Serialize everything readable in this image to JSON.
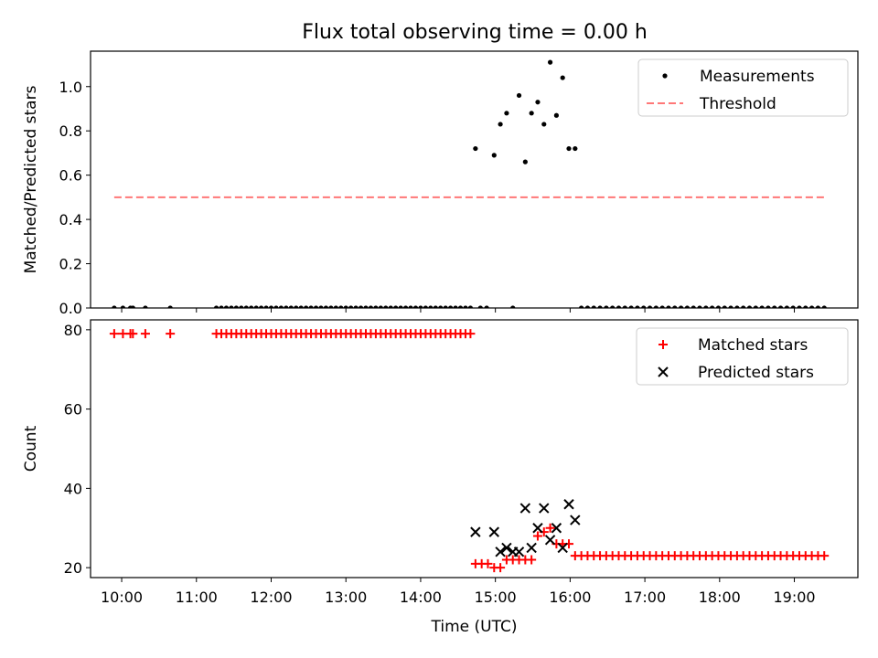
{
  "title": "Flux total observing time = 0.00 h",
  "chart_data": [
    {
      "type": "scatter",
      "ylabel": "Matched/Predicted stars",
      "ylim": [
        0,
        1.16
      ],
      "yticks": [
        0.0,
        0.2,
        0.4,
        0.6,
        0.8,
        1.0
      ],
      "ytick_labels": [
        "0.0",
        "0.2",
        "0.4",
        "0.6",
        "0.8",
        "1.0"
      ],
      "xlim": [
        "09:35",
        "19:51"
      ],
      "legend_position": "top-right",
      "series": [
        {
          "name": "Measurements",
          "marker": "dot",
          "color": "#000000",
          "points": [
            [
              "09:54",
              0
            ],
            [
              "10:01",
              0
            ],
            [
              "10:07",
              0
            ],
            [
              "10:09",
              0
            ],
            [
              "10:19",
              0
            ],
            [
              "10:39",
              0
            ],
            [
              "11:16",
              0
            ],
            [
              "11:20",
              0
            ],
            [
              "11:24",
              0
            ],
            [
              "11:28",
              0
            ],
            [
              "11:32",
              0
            ],
            [
              "11:36",
              0
            ],
            [
              "11:40",
              0
            ],
            [
              "11:44",
              0
            ],
            [
              "11:48",
              0
            ],
            [
              "11:52",
              0
            ],
            [
              "11:56",
              0
            ],
            [
              "12:00",
              0
            ],
            [
              "12:04",
              0
            ],
            [
              "12:08",
              0
            ],
            [
              "12:12",
              0
            ],
            [
              "12:16",
              0
            ],
            [
              "12:20",
              0
            ],
            [
              "12:24",
              0
            ],
            [
              "12:28",
              0
            ],
            [
              "12:32",
              0
            ],
            [
              "12:36",
              0
            ],
            [
              "12:40",
              0
            ],
            [
              "12:44",
              0
            ],
            [
              "12:48",
              0
            ],
            [
              "12:52",
              0
            ],
            [
              "12:56",
              0
            ],
            [
              "13:00",
              0
            ],
            [
              "13:04",
              0
            ],
            [
              "13:08",
              0
            ],
            [
              "13:12",
              0
            ],
            [
              "13:16",
              0
            ],
            [
              "13:20",
              0
            ],
            [
              "13:24",
              0
            ],
            [
              "13:28",
              0
            ],
            [
              "13:32",
              0
            ],
            [
              "13:36",
              0
            ],
            [
              "13:40",
              0
            ],
            [
              "13:44",
              0
            ],
            [
              "13:48",
              0
            ],
            [
              "13:52",
              0
            ],
            [
              "13:56",
              0
            ],
            [
              "14:00",
              0
            ],
            [
              "14:04",
              0
            ],
            [
              "14:08",
              0
            ],
            [
              "14:12",
              0
            ],
            [
              "14:16",
              0
            ],
            [
              "14:20",
              0
            ],
            [
              "14:24",
              0
            ],
            [
              "14:28",
              0
            ],
            [
              "14:32",
              0
            ],
            [
              "14:36",
              0
            ],
            [
              "14:40",
              0
            ],
            [
              "14:48",
              0
            ],
            [
              "14:53",
              0
            ],
            [
              "15:14",
              0
            ],
            [
              "14:44",
              0.72
            ],
            [
              "14:59",
              0.69
            ],
            [
              "15:04",
              0.83
            ],
            [
              "15:09",
              0.88
            ],
            [
              "15:19",
              0.96
            ],
            [
              "15:24",
              0.66
            ],
            [
              "15:29",
              0.88
            ],
            [
              "15:34",
              0.93
            ],
            [
              "15:39",
              0.83
            ],
            [
              "15:44",
              1.11
            ],
            [
              "15:49",
              0.87
            ],
            [
              "15:54",
              1.04
            ],
            [
              "15:59",
              0.72
            ],
            [
              "16:04",
              0.72
            ],
            [
              "16:09",
              0
            ],
            [
              "16:14",
              0
            ],
            [
              "16:19",
              0
            ],
            [
              "16:24",
              0
            ],
            [
              "16:29",
              0
            ],
            [
              "16:34",
              0
            ],
            [
              "16:39",
              0
            ],
            [
              "16:44",
              0
            ],
            [
              "16:49",
              0
            ],
            [
              "16:54",
              0
            ],
            [
              "16:59",
              0
            ],
            [
              "17:04",
              0
            ],
            [
              "17:09",
              0
            ],
            [
              "17:14",
              0
            ],
            [
              "17:19",
              0
            ],
            [
              "17:24",
              0
            ],
            [
              "17:29",
              0
            ],
            [
              "17:34",
              0
            ],
            [
              "17:39",
              0
            ],
            [
              "17:44",
              0
            ],
            [
              "17:49",
              0
            ],
            [
              "17:54",
              0
            ],
            [
              "17:59",
              0
            ],
            [
              "18:04",
              0
            ],
            [
              "18:09",
              0
            ],
            [
              "18:14",
              0
            ],
            [
              "18:19",
              0
            ],
            [
              "18:24",
              0
            ],
            [
              "18:29",
              0
            ],
            [
              "18:34",
              0
            ],
            [
              "18:39",
              0
            ],
            [
              "18:44",
              0
            ],
            [
              "18:49",
              0
            ],
            [
              "18:54",
              0
            ],
            [
              "18:59",
              0
            ],
            [
              "19:04",
              0
            ],
            [
              "19:09",
              0
            ],
            [
              "19:14",
              0
            ],
            [
              "19:19",
              0
            ],
            [
              "19:24",
              0
            ]
          ]
        },
        {
          "name": "Threshold",
          "marker": "dashed-line",
          "color": "#ff7777",
          "points": [
            [
              "09:54",
              0.5
            ],
            [
              "19:24",
              0.5
            ]
          ]
        }
      ]
    },
    {
      "type": "scatter",
      "ylabel": "Count",
      "xlabel": "Time (UTC)",
      "ylim": [
        17.5,
        82.5
      ],
      "yticks": [
        20,
        40,
        60,
        80
      ],
      "ytick_labels": [
        "20",
        "40",
        "60",
        "80"
      ],
      "xlim": [
        "09:35",
        "19:51"
      ],
      "xticks": [
        "10:00",
        "11:00",
        "12:00",
        "13:00",
        "14:00",
        "15:00",
        "16:00",
        "17:00",
        "18:00",
        "19:00"
      ],
      "legend_position": "top-right",
      "series": [
        {
          "name": "Matched stars",
          "marker": "plus",
          "color": "#ff0000",
          "points": [
            [
              "09:54",
              79
            ],
            [
              "10:01",
              79
            ],
            [
              "10:07",
              79
            ],
            [
              "10:09",
              79
            ],
            [
              "10:19",
              79
            ],
            [
              "10:39",
              79
            ],
            [
              "11:16",
              79
            ],
            [
              "11:20",
              79
            ],
            [
              "11:24",
              79
            ],
            [
              "11:28",
              79
            ],
            [
              "11:32",
              79
            ],
            [
              "11:36",
              79
            ],
            [
              "11:40",
              79
            ],
            [
              "11:44",
              79
            ],
            [
              "11:48",
              79
            ],
            [
              "11:52",
              79
            ],
            [
              "11:56",
              79
            ],
            [
              "12:00",
              79
            ],
            [
              "12:04",
              79
            ],
            [
              "12:08",
              79
            ],
            [
              "12:12",
              79
            ],
            [
              "12:16",
              79
            ],
            [
              "12:20",
              79
            ],
            [
              "12:24",
              79
            ],
            [
              "12:28",
              79
            ],
            [
              "12:32",
              79
            ],
            [
              "12:36",
              79
            ],
            [
              "12:40",
              79
            ],
            [
              "12:44",
              79
            ],
            [
              "12:48",
              79
            ],
            [
              "12:52",
              79
            ],
            [
              "12:56",
              79
            ],
            [
              "13:00",
              79
            ],
            [
              "13:04",
              79
            ],
            [
              "13:08",
              79
            ],
            [
              "13:12",
              79
            ],
            [
              "13:16",
              79
            ],
            [
              "13:20",
              79
            ],
            [
              "13:24",
              79
            ],
            [
              "13:28",
              79
            ],
            [
              "13:32",
              79
            ],
            [
              "13:36",
              79
            ],
            [
              "13:40",
              79
            ],
            [
              "13:44",
              79
            ],
            [
              "13:48",
              79
            ],
            [
              "13:52",
              79
            ],
            [
              "13:56",
              79
            ],
            [
              "14:00",
              79
            ],
            [
              "14:04",
              79
            ],
            [
              "14:08",
              79
            ],
            [
              "14:12",
              79
            ],
            [
              "14:16",
              79
            ],
            [
              "14:20",
              79
            ],
            [
              "14:24",
              79
            ],
            [
              "14:28",
              79
            ],
            [
              "14:32",
              79
            ],
            [
              "14:36",
              79
            ],
            [
              "14:40",
              79
            ],
            [
              "14:44",
              21
            ],
            [
              "14:49",
              21
            ],
            [
              "14:54",
              21
            ],
            [
              "14:59",
              20
            ],
            [
              "15:04",
              20
            ],
            [
              "15:09",
              22
            ],
            [
              "15:14",
              22
            ],
            [
              "15:19",
              22
            ],
            [
              "15:24",
              22
            ],
            [
              "15:29",
              22
            ],
            [
              "15:34",
              28
            ],
            [
              "15:39",
              29
            ],
            [
              "15:44",
              30
            ],
            [
              "15:49",
              26
            ],
            [
              "15:54",
              26
            ],
            [
              "15:59",
              26
            ],
            [
              "16:04",
              23
            ],
            [
              "16:09",
              23
            ],
            [
              "16:14",
              23
            ],
            [
              "16:19",
              23
            ],
            [
              "16:24",
              23
            ],
            [
              "16:29",
              23
            ],
            [
              "16:34",
              23
            ],
            [
              "16:39",
              23
            ],
            [
              "16:44",
              23
            ],
            [
              "16:49",
              23
            ],
            [
              "16:54",
              23
            ],
            [
              "16:59",
              23
            ],
            [
              "17:04",
              23
            ],
            [
              "17:09",
              23
            ],
            [
              "17:14",
              23
            ],
            [
              "17:19",
              23
            ],
            [
              "17:24",
              23
            ],
            [
              "17:29",
              23
            ],
            [
              "17:34",
              23
            ],
            [
              "17:39",
              23
            ],
            [
              "17:44",
              23
            ],
            [
              "17:49",
              23
            ],
            [
              "17:54",
              23
            ],
            [
              "17:59",
              23
            ],
            [
              "18:04",
              23
            ],
            [
              "18:09",
              23
            ],
            [
              "18:14",
              23
            ],
            [
              "18:19",
              23
            ],
            [
              "18:24",
              23
            ],
            [
              "18:29",
              23
            ],
            [
              "18:34",
              23
            ],
            [
              "18:39",
              23
            ],
            [
              "18:44",
              23
            ],
            [
              "18:49",
              23
            ],
            [
              "18:54",
              23
            ],
            [
              "18:59",
              23
            ],
            [
              "19:04",
              23
            ],
            [
              "19:09",
              23
            ],
            [
              "19:14",
              23
            ],
            [
              "19:19",
              23
            ],
            [
              "19:24",
              23
            ]
          ]
        },
        {
          "name": "Predicted stars",
          "marker": "x",
          "color": "#000000",
          "points": [
            [
              "14:44",
              29
            ],
            [
              "14:59",
              29
            ],
            [
              "15:04",
              24
            ],
            [
              "15:09",
              25
            ],
            [
              "15:14",
              24
            ],
            [
              "15:19",
              24
            ],
            [
              "15:24",
              35
            ],
            [
              "15:29",
              25
            ],
            [
              "15:34",
              30
            ],
            [
              "15:39",
              35
            ],
            [
              "15:44",
              27
            ],
            [
              "15:49",
              30
            ],
            [
              "15:54",
              25
            ],
            [
              "15:59",
              36
            ],
            [
              "16:04",
              32
            ]
          ]
        }
      ]
    }
  ]
}
